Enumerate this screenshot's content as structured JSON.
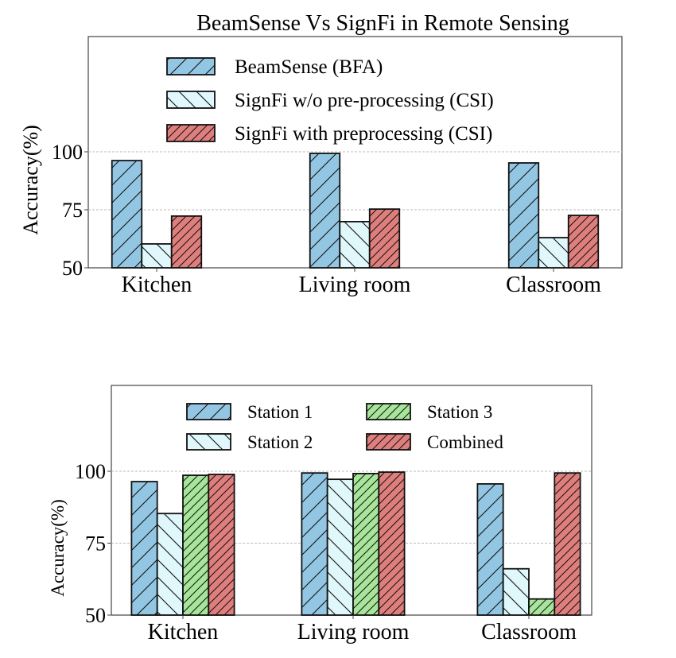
{
  "chart_data": [
    {
      "type": "bar",
      "title": "BeamSense Vs SignFi in Remote Sensing",
      "xlabel": "",
      "ylabel": "Accuracy(%)",
      "ylim": [
        50,
        130
      ],
      "yticks": [
        50,
        75,
        100
      ],
      "grid": true,
      "legend_position": "top-center",
      "categories": [
        "Kitchen",
        "Living room",
        "Classroom"
      ],
      "series": [
        {
          "name": "BeamSense (BFA)",
          "color": "#93c6e3",
          "hatch": "/",
          "values": [
            96.2,
            99.3,
            95.2
          ]
        },
        {
          "name": "SignFi w/o pre-processing (CSI)",
          "color": "#e0f7fb",
          "hatch": "\\",
          "values": [
            60.3,
            69.9,
            63.0
          ]
        },
        {
          "name": "SignFi with preprocessing (CSI)",
          "color": "#df7f7d",
          "hatch": "//",
          "values": [
            72.3,
            75.3,
            72.6
          ]
        }
      ]
    },
    {
      "type": "bar",
      "title": "",
      "xlabel": "",
      "ylabel": "Accuracy(%)",
      "ylim": [
        50,
        130
      ],
      "yticks": [
        50,
        75,
        100
      ],
      "grid": true,
      "legend_position": "top-center",
      "legend_columns": 2,
      "categories": [
        "Kitchen",
        "Living room",
        "Classroom"
      ],
      "series": [
        {
          "name": "Station 1",
          "color": "#93c6e3",
          "hatch": "/",
          "values": [
            96.4,
            99.4,
            95.6
          ]
        },
        {
          "name": "Station 2",
          "color": "#e0f7fb",
          "hatch": "\\",
          "values": [
            85.3,
            97.2,
            66.1
          ]
        },
        {
          "name": "Station 3",
          "color": "#a6e59a",
          "hatch": "//",
          "values": [
            98.6,
            99.2,
            55.6
          ]
        },
        {
          "name": "Combined",
          "color": "#df7f7d",
          "hatch": "//",
          "values": [
            98.9,
            99.7,
            99.4
          ]
        }
      ]
    }
  ]
}
